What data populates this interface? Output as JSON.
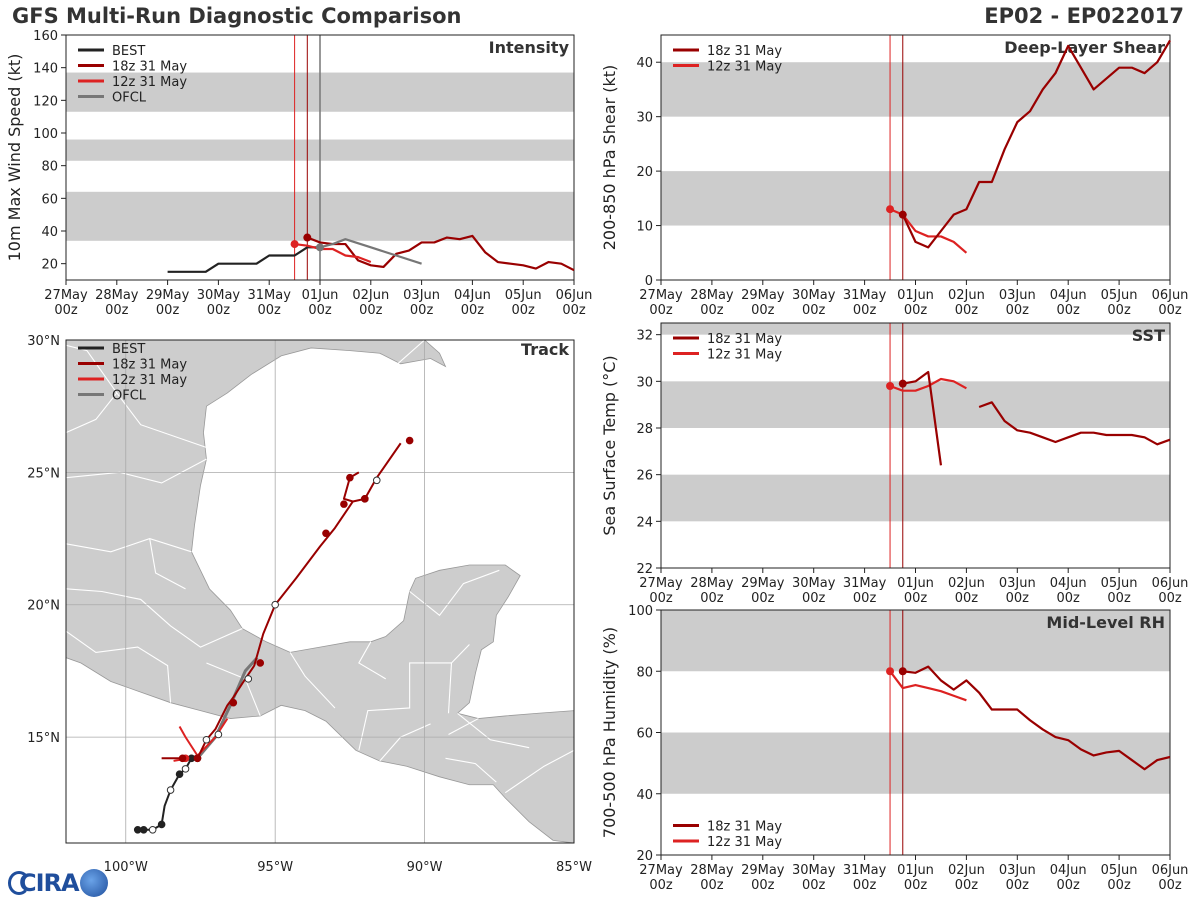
{
  "titles": {
    "left": "GFS Multi-Run Diagnostic Comparison",
    "right": "EP02 - EP022017"
  },
  "logo": {
    "text": "CIRA"
  },
  "colors": {
    "best": "#222222",
    "r18z": "#990000",
    "r12z": "#dd2222",
    "ofcl": "#777777",
    "band": "#cccccc",
    "land": "#cdcdcd",
    "border": "#ffffff"
  },
  "time_axis": {
    "days": [
      0,
      1,
      2,
      3,
      4,
      5,
      6,
      7,
      8,
      9,
      10
    ],
    "labels": [
      "27May",
      "28May",
      "29May",
      "30May",
      "31May",
      "01Jun",
      "02Jun",
      "03Jun",
      "04Jun",
      "05Jun",
      "06Jun"
    ],
    "sublabel": "00z",
    "init_12z": 4.5,
    "init_18z": 4.75,
    "note": "x values are days since 27May 00z"
  },
  "chart_data": [
    {
      "id": "intensity",
      "type": "line",
      "title": "Intensity",
      "ylabel": "10m Max Wind Speed (kt)",
      "ylim": [
        10,
        160
      ],
      "yticks": [
        20,
        40,
        60,
        80,
        100,
        120,
        140,
        160
      ],
      "bands": [
        [
          34,
          64
        ],
        [
          83,
          96
        ],
        [
          113,
          137
        ]
      ],
      "markers": [
        {
          "x": 4.5,
          "series": "12z"
        },
        {
          "x": 4.75,
          "series": "18z"
        },
        {
          "x": 5.0,
          "series": "OFCL"
        }
      ],
      "legend": [
        {
          "key": "BEST",
          "label": "BEST"
        },
        {
          "key": "18z",
          "label": "18z 31 May"
        },
        {
          "key": "12z",
          "label": "12z 31 May"
        },
        {
          "key": "OFCL",
          "label": "OFCL"
        }
      ],
      "series": [
        {
          "name": "BEST",
          "x": [
            2.0,
            2.25,
            2.5,
            2.75,
            3.0,
            3.25,
            3.5,
            3.75,
            4.0,
            4.25,
            4.5,
            4.75,
            5.0
          ],
          "y": [
            15,
            15,
            15,
            15,
            20,
            20,
            20,
            20,
            25,
            25,
            25,
            30,
            30
          ]
        },
        {
          "name": "18z",
          "x": [
            4.75,
            5.0,
            5.25,
            5.5,
            5.75,
            6.0,
            6.25,
            6.5,
            6.75,
            7.0,
            7.25,
            7.5,
            7.75,
            8.0,
            8.25,
            8.5,
            8.75,
            9.0,
            9.25,
            9.5,
            9.75,
            10.0
          ],
          "y": [
            36,
            33,
            32,
            32,
            22,
            19,
            18,
            26,
            28,
            33,
            33,
            36,
            35,
            37,
            27,
            21,
            20,
            19,
            17,
            21,
            20,
            16
          ],
          "dot": true
        },
        {
          "name": "12z",
          "x": [
            4.5,
            4.75,
            5.0,
            5.25,
            5.5,
            5.75,
            6.0
          ],
          "y": [
            32,
            31,
            29,
            29,
            25,
            24,
            21
          ],
          "dot": true
        },
        {
          "name": "OFCL",
          "x": [
            5.0,
            5.25,
            5.5,
            6.0,
            6.5,
            7.0
          ],
          "y": [
            30,
            32,
            35,
            30,
            25,
            20
          ],
          "dot": true
        }
      ]
    },
    {
      "id": "shear",
      "type": "line",
      "title": "Deep-Layer Shear",
      "ylabel": "200-850 hPa Shear (kt)",
      "ylim": [
        0,
        45
      ],
      "yticks": [
        0,
        10,
        20,
        30,
        40
      ],
      "bands": [
        [
          10,
          20
        ],
        [
          30,
          40
        ]
      ],
      "legend": [
        {
          "key": "18z",
          "label": "18z 31 May"
        },
        {
          "key": "12z",
          "label": "12z 31 May"
        }
      ],
      "series": [
        {
          "name": "12z",
          "x": [
            4.5,
            4.75,
            5.0,
            5.25,
            5.5,
            5.75,
            6.0
          ],
          "y": [
            13,
            12,
            9,
            8,
            8,
            7,
            5
          ],
          "dot": true
        },
        {
          "name": "18z",
          "x": [
            4.75,
            5.0,
            5.25,
            5.5,
            5.75,
            6.0,
            6.25,
            6.5,
            6.75,
            7.0,
            7.25,
            7.5,
            7.75,
            8.0,
            8.25,
            8.5,
            8.75,
            9.0,
            9.25,
            9.5,
            9.75,
            10.0
          ],
          "y": [
            12,
            7,
            6,
            9,
            12,
            13,
            18,
            18,
            24,
            29,
            31,
            35,
            38,
            43,
            39,
            35,
            37,
            39,
            39,
            38,
            40,
            44
          ],
          "dot": true
        }
      ]
    },
    {
      "id": "sst",
      "type": "line",
      "title": "SST",
      "ylabel": "Sea Surface Temp (°C)",
      "ylim": [
        22,
        32.5
      ],
      "yticks": [
        22,
        24,
        26,
        28,
        30,
        32
      ],
      "bands": [
        [
          24,
          26
        ],
        [
          28,
          30
        ],
        [
          32,
          32.5
        ]
      ],
      "legend": [
        {
          "key": "18z",
          "label": "18z 31 May"
        },
        {
          "key": "12z",
          "label": "12z 31 May"
        }
      ],
      "series": [
        {
          "name": "12z",
          "x": [
            4.5,
            4.75,
            5.0,
            5.25,
            5.5,
            5.75,
            6.0
          ],
          "y": [
            29.8,
            29.6,
            29.6,
            29.8,
            30.1,
            30.0,
            29.7
          ],
          "dot": true
        },
        {
          "name": "18z",
          "x": [
            4.75,
            5.0,
            5.25,
            5.5
          ],
          "y": [
            29.9,
            30.0,
            30.4,
            26.4
          ],
          "dot": true
        },
        {
          "name": "18z",
          "x": [
            6.25,
            6.5,
            6.75,
            7.0,
            7.25,
            7.5,
            7.75,
            8.0,
            8.25,
            8.5,
            8.75,
            9.0,
            9.25,
            9.5,
            9.75,
            10.0
          ],
          "y": [
            28.9,
            29.1,
            28.3,
            27.9,
            27.8,
            27.6,
            27.4,
            27.6,
            27.8,
            27.8,
            27.7,
            27.7,
            27.7,
            27.6,
            27.3,
            27.5
          ]
        }
      ]
    },
    {
      "id": "rh",
      "type": "line",
      "title": "Mid-Level RH",
      "ylabel": "700-500 hPa Humidity (%)",
      "ylim": [
        20,
        100
      ],
      "yticks": [
        20,
        40,
        60,
        80,
        100
      ],
      "bands": [
        [
          40,
          60
        ],
        [
          80,
          100
        ]
      ],
      "legend": [
        {
          "key": "18z",
          "label": "18z 31 May"
        },
        {
          "key": "12z",
          "label": "12z 31 May"
        }
      ],
      "series": [
        {
          "name": "12z",
          "x": [
            4.5,
            4.75,
            5.0,
            5.25,
            5.5,
            5.75,
            6.0
          ],
          "y": [
            80,
            74.5,
            75.5,
            74.5,
            73.5,
            72,
            70.5
          ],
          "dot": true
        },
        {
          "name": "18z",
          "x": [
            4.75,
            5.0,
            5.25,
            5.5,
            5.75,
            6.0,
            6.25,
            6.5,
            6.75,
            7.0,
            7.25,
            7.5,
            7.75,
            8.0,
            8.25,
            8.5,
            8.75,
            9.0,
            9.25,
            9.5,
            9.75,
            10.0
          ],
          "y": [
            80,
            79.5,
            81.5,
            77,
            74,
            77,
            73,
            67.5,
            67.5,
            67.5,
            64,
            61,
            58.5,
            57.5,
            54.5,
            52.5,
            53.5,
            54,
            51,
            48,
            51,
            52
          ],
          "dot": true
        }
      ]
    },
    {
      "id": "track",
      "type": "scatter",
      "title": "Track",
      "xlim": [
        -102,
        -85
      ],
      "ylim": [
        11,
        30
      ],
      "xticks": [
        -100,
        -95,
        -90,
        -85
      ],
      "xtick_labels": [
        "100°W",
        "95°W",
        "90°W",
        "85°W"
      ],
      "yticks": [
        15,
        20,
        25,
        30
      ],
      "ytick_labels": [
        "15°N",
        "20°N",
        "25°N",
        "30°N"
      ],
      "legend": [
        {
          "key": "BEST",
          "label": "BEST"
        },
        {
          "key": "18z",
          "label": "18z 31 May"
        },
        {
          "key": "12z",
          "label": "12z 31 May"
        },
        {
          "key": "OFCL",
          "label": "OFCL"
        }
      ],
      "series": [
        {
          "name": "BEST",
          "points": [
            [
              -99.6,
              11.5
            ],
            [
              -99.4,
              11.5
            ],
            [
              -99.1,
              11.5
            ],
            [
              -98.8,
              11.7
            ],
            [
              -98.7,
              12.4
            ],
            [
              -98.5,
              13.0
            ],
            [
              -98.2,
              13.6
            ],
            [
              -98.0,
              13.8
            ],
            [
              -97.8,
              14.2
            ],
            [
              -97.6,
              14.2
            ]
          ],
          "dots": [
            [
              -99.6,
              11.5,
              "f"
            ],
            [
              -99.4,
              11.5,
              "f"
            ],
            [
              -99.1,
              11.5,
              "o"
            ],
            [
              -98.8,
              11.7,
              "f"
            ],
            [
              -98.5,
              13.0,
              "o"
            ],
            [
              -98.2,
              13.6,
              "f"
            ],
            [
              -98.0,
              13.8,
              "o"
            ],
            [
              -97.8,
              14.2,
              "f"
            ],
            [
              -97.6,
              14.2,
              "f"
            ]
          ]
        },
        {
          "name": "OFCL",
          "points": [
            [
              -97.6,
              14.2
            ],
            [
              -97.0,
              15.0
            ],
            [
              -96.5,
              16.2
            ],
            [
              -96.0,
              17.5
            ],
            [
              -95.6,
              18.0
            ]
          ]
        },
        {
          "name": "12z",
          "points": [
            [
              -98.4,
              14.1
            ],
            [
              -97.9,
              14.2
            ],
            [
              -97.6,
              14.3
            ],
            [
              -97.0,
              15.0
            ],
            [
              -96.6,
              15.7
            ]
          ],
          "dots": [
            [
              -98.0,
              14.2,
              "f"
            ]
          ]
        },
        {
          "name": "12z",
          "points": [
            [
              -97.6,
              14.3
            ],
            [
              -98.0,
              15.0
            ],
            [
              -98.2,
              15.4
            ]
          ],
          "dots": []
        },
        {
          "name": "18z",
          "points": [
            [
              -97.6,
              14.2
            ],
            [
              -97.3,
              14.9
            ],
            [
              -97.0,
              15.3
            ],
            [
              -96.6,
              16.2
            ],
            [
              -96.4,
              16.5
            ],
            [
              -96.0,
              17.2
            ],
            [
              -95.7,
              17.7
            ],
            [
              -95.4,
              18.9
            ],
            [
              -95.0,
              20.0
            ],
            [
              -94.3,
              21.0
            ],
            [
              -93.5,
              22.2
            ],
            [
              -93.0,
              22.9
            ],
            [
              -92.4,
              23.9
            ],
            [
              -92.0,
              24.0
            ],
            [
              -91.6,
              24.8
            ],
            [
              -90.8,
              26.1
            ]
          ],
          "dots": [
            [
              -96.9,
              15.1,
              "o"
            ],
            [
              -96.4,
              16.3,
              "f"
            ],
            [
              -95.9,
              17.2,
              "o"
            ],
            [
              -95.5,
              17.8,
              "f"
            ],
            [
              -95.0,
              20.0,
              "o"
            ],
            [
              -93.3,
              22.7,
              "f"
            ],
            [
              -92.0,
              24.0,
              "o"
            ],
            [
              -92.0,
              24.0,
              "f"
            ],
            [
              -92.7,
              23.8,
              "f"
            ],
            [
              -92.5,
              24.8,
              "f"
            ],
            [
              -91.6,
              24.7,
              "o"
            ],
            [
              -90.5,
              26.2,
              "f"
            ],
            [
              -97.3,
              14.9,
              "o"
            ],
            [
              -97.6,
              14.2,
              "f"
            ]
          ]
        },
        {
          "name": "18z",
          "points": [
            [
              -92.4,
              23.9
            ],
            [
              -92.7,
              24.0
            ],
            [
              -92.5,
              24.8
            ],
            [
              -92.2,
              25.0
            ]
          ],
          "dots": []
        },
        {
          "name": "18z",
          "points": [
            [
              -97.6,
              14.2
            ],
            [
              -98.3,
              14.2
            ],
            [
              -98.8,
              14.2
            ]
          ],
          "dots": [
            [
              -98.1,
              14.2,
              "f"
            ]
          ]
        }
      ]
    }
  ]
}
